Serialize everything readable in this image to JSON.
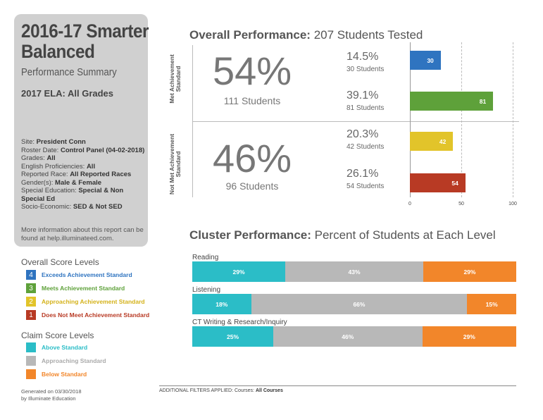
{
  "card": {
    "title": "2016-17 Smarter Balanced",
    "subtitle": "Performance Summary",
    "test": "2017 ELA: All Grades",
    "meta": [
      {
        "label": "Site: ",
        "value": "President Conn"
      },
      {
        "label": "Roster Date: ",
        "value": "Control Panel (04-02-2018)"
      },
      {
        "label": "Grades: ",
        "value": "All"
      },
      {
        "label": "English Proficiencies: ",
        "value": "All"
      },
      {
        "label": "Reported Race: ",
        "value": "All Reported Races"
      },
      {
        "label": "Gender(s): ",
        "value": "Male & Female"
      },
      {
        "label": "Special Education: ",
        "value": "Special & Non Special Ed"
      },
      {
        "label": "Socio-Economic: ",
        "value": "SED & Not SED"
      }
    ],
    "more_info": "More information about this report can be found at help.illuminateed.com."
  },
  "overall_legend": {
    "title": "Overall Score Levels",
    "items": [
      {
        "num": "4",
        "label": "Exceeds Achievement Standard",
        "color": "#2f74c0"
      },
      {
        "num": "3",
        "label": "Meets Achievement Standard",
        "color": "#5ea13a"
      },
      {
        "num": "2",
        "label": "Approaching Achievement Standard",
        "color": "#e2c42a"
      },
      {
        "num": "1",
        "label": "Does Not Meet Achievement Standard",
        "color": "#b83a24"
      }
    ]
  },
  "claim_legend": {
    "title": "Claim Score Levels",
    "items": [
      {
        "label": "Above Standard",
        "color": "#2bbdc7"
      },
      {
        "label": "Approaching Standard",
        "color": "#b8b8b8"
      },
      {
        "label": "Below Standard",
        "color": "#f2862a"
      }
    ]
  },
  "generated": {
    "line1": "Generated on 03/30/2018",
    "line2": "by Illuminate Education"
  },
  "overall": {
    "title_bold": "Overall Performance:",
    "title_rest": " 207 Students Tested",
    "groups": [
      {
        "side_label": "Met Achievement Standard",
        "pct": "54%",
        "students": "111 Students"
      },
      {
        "side_label": "Not Met Achievement Standard",
        "pct": "46%",
        "students": "96 Students"
      }
    ]
  },
  "chart_data": {
    "type": "bar",
    "orientation": "horizontal",
    "categories": [
      "4",
      "3",
      "2",
      "1"
    ],
    "pct_labels": [
      "14.5%",
      "39.1%",
      "20.3%",
      "26.1%"
    ],
    "student_labels": [
      "30 Students",
      "81 Students",
      "42 Students",
      "54 Students"
    ],
    "values": [
      30,
      81,
      42,
      54
    ],
    "colors": [
      "#2f74c0",
      "#5ea13a",
      "#e2c42a",
      "#b83a24"
    ],
    "xlim": [
      0,
      100
    ],
    "xticks": [
      "0",
      "50",
      "100"
    ],
    "grid": true
  },
  "cluster": {
    "title_bold": "Cluster Performance:",
    "title_rest": " Percent of Students at Each Level",
    "rows": [
      {
        "name": "Reading",
        "values": [
          29,
          43,
          29
        ],
        "labels": [
          "29%",
          "43%",
          "29%"
        ]
      },
      {
        "name": "Listening",
        "values": [
          18,
          66,
          15
        ],
        "labels": [
          "18%",
          "66%",
          "15%"
        ]
      },
      {
        "name": "CT Writing & Research/Inquiry",
        "values": [
          25,
          46,
          29
        ],
        "labels": [
          "25%",
          "46%",
          "29%"
        ]
      }
    ]
  },
  "footer": {
    "label": "ADDITIONAL FILTERS APPLIED:  Courses: ",
    "value": "All Courses"
  }
}
